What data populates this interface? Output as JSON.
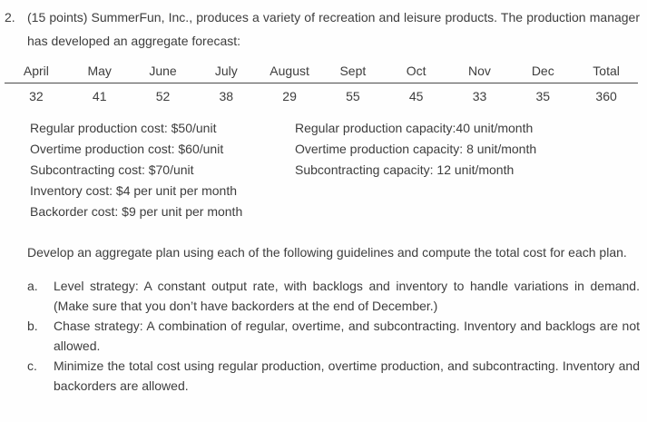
{
  "colors": {
    "text": "#3d3d3d",
    "table_rule": "#4a4a4a",
    "background": "#fefefe"
  },
  "problem": {
    "number": "2.",
    "intro": "(15 points) SummerFun, Inc., produces a variety of recreation and leisure products. The production manager has developed an aggregate forecast:"
  },
  "forecast_table": {
    "headers": [
      "April",
      "May",
      "June",
      "July",
      "August",
      "Sept",
      "Oct",
      "Nov",
      "Dec",
      "Total"
    ],
    "values": [
      32,
      41,
      52,
      38,
      29,
      55,
      45,
      33,
      35,
      360
    ]
  },
  "costs": {
    "left": [
      "Regular production cost: $50/unit",
      "Overtime production cost: $60/unit",
      "Subcontracting cost: $70/unit",
      "Inventory cost: $4 per unit per month",
      "Backorder cost: $9 per unit per month"
    ],
    "right": [
      "Regular production capacity:40 unit/month",
      "Overtime production capacity: 8 unit/month",
      "Subcontracting capacity: 12 unit/month"
    ]
  },
  "instructions": "Develop an aggregate plan using each of the following guidelines and compute the total cost for each plan.",
  "plans": [
    {
      "marker": "a.",
      "text": "Level strategy: A constant output rate, with backlogs and inventory to handle variations in demand. (Make sure that you don’t have backorders at the end of December.)"
    },
    {
      "marker": "b.",
      "text": "Chase strategy: A combination of regular, overtime, and subcontracting. Inventory and backlogs are not allowed."
    },
    {
      "marker": "c.",
      "text": "Minimize the total cost using regular production, overtime production, and subcontracting. Inventory and backorders are allowed."
    }
  ]
}
